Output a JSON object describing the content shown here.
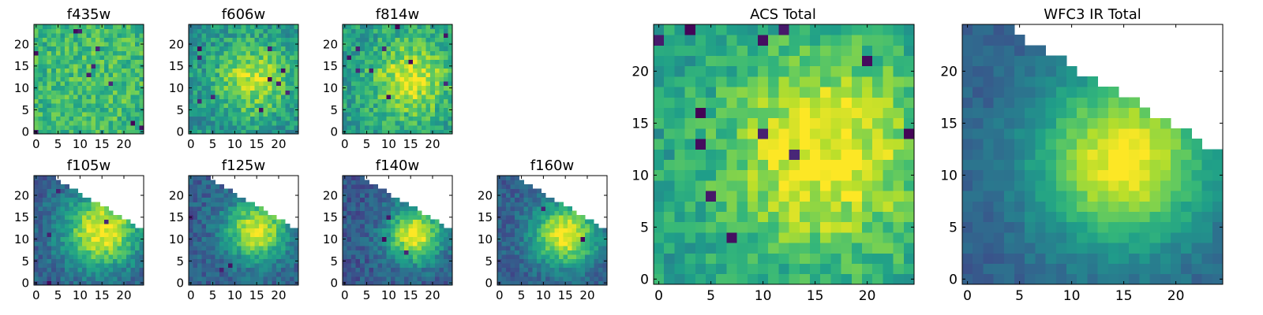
{
  "colormap": {
    "name": "viridis",
    "stops": [
      "#440154",
      "#482878",
      "#3e4989",
      "#31688e",
      "#26828e",
      "#1f9e89",
      "#35b779",
      "#6ece58",
      "#b5de2b",
      "#fde725"
    ]
  },
  "chart_data": [
    {
      "type": "heatmap",
      "title": "f435w",
      "x_ticks": [
        0,
        5,
        10,
        15,
        20
      ],
      "y_ticks": [
        0,
        5,
        10,
        15,
        20
      ],
      "xlim": [
        -0.5,
        24.5
      ],
      "ylim": [
        -0.5,
        24.5
      ],
      "grid_size": [
        25,
        25
      ],
      "value_range": [
        0,
        1
      ],
      "field": {
        "peak": [
          14,
          12
        ],
        "peak_value": 0.7,
        "width": 14,
        "background": 0.6,
        "noise": 0.3,
        "masked": "none",
        "hot_pixels": 10
      }
    },
    {
      "type": "heatmap",
      "title": "f606w",
      "x_ticks": [
        0,
        5,
        10,
        15,
        20
      ],
      "y_ticks": [
        0,
        5,
        10,
        15,
        20
      ],
      "xlim": [
        -0.5,
        24.5
      ],
      "ylim": [
        -0.5,
        24.5
      ],
      "grid_size": [
        25,
        25
      ],
      "value_range": [
        0,
        1
      ],
      "field": {
        "peak": [
          14,
          12
        ],
        "peak_value": 0.9,
        "width": 6,
        "background": 0.5,
        "noise": 0.3,
        "masked": "none",
        "hot_pixels": 10
      }
    },
    {
      "type": "heatmap",
      "title": "f814w",
      "x_ticks": [
        0,
        5,
        10,
        15,
        20
      ],
      "y_ticks": [
        0,
        5,
        10,
        15,
        20
      ],
      "xlim": [
        -0.5,
        24.5
      ],
      "ylim": [
        -0.5,
        24.5
      ],
      "grid_size": [
        25,
        25
      ],
      "value_range": [
        0,
        1
      ],
      "field": {
        "peak": [
          15,
          12
        ],
        "peak_value": 0.95,
        "width": 6,
        "background": 0.55,
        "noise": 0.3,
        "masked": "none",
        "hot_pixels": 10
      }
    },
    {
      "type": "heatmap",
      "title": "f105w",
      "x_ticks": [
        0,
        5,
        10,
        15,
        20
      ],
      "y_ticks": [
        0,
        5,
        10,
        15,
        20
      ],
      "xlim": [
        -0.5,
        24.5
      ],
      "ylim": [
        -0.5,
        24.5
      ],
      "grid_size": [
        25,
        25
      ],
      "value_range": [
        0,
        1
      ],
      "field": {
        "peak": [
          15,
          12
        ],
        "peak_value": 1.0,
        "width": 6,
        "background": 0.3,
        "noise": 0.22,
        "masked": "upper-right",
        "hot_pixels": 4
      }
    },
    {
      "type": "heatmap",
      "title": "f125w",
      "x_ticks": [
        0,
        5,
        10,
        15,
        20
      ],
      "y_ticks": [
        0,
        5,
        10,
        15,
        20
      ],
      "xlim": [
        -0.5,
        24.5
      ],
      "ylim": [
        -0.5,
        24.5
      ],
      "grid_size": [
        25,
        25
      ],
      "value_range": [
        0,
        1
      ],
      "field": {
        "peak": [
          15,
          12
        ],
        "peak_value": 0.95,
        "width": 5,
        "background": 0.3,
        "noise": 0.22,
        "masked": "upper-right",
        "hot_pixels": 4
      }
    },
    {
      "type": "heatmap",
      "title": "f140w",
      "x_ticks": [
        0,
        5,
        10,
        15,
        20
      ],
      "y_ticks": [
        0,
        5,
        10,
        15,
        20
      ],
      "xlim": [
        -0.5,
        24.5
      ],
      "ylim": [
        -0.5,
        24.5
      ],
      "grid_size": [
        25,
        25
      ],
      "value_range": [
        0,
        1
      ],
      "field": {
        "peak": [
          16,
          11
        ],
        "peak_value": 1.0,
        "width": 4.5,
        "background": 0.28,
        "noise": 0.22,
        "masked": "upper-right",
        "hot_pixels": 4
      }
    },
    {
      "type": "heatmap",
      "title": "f160w",
      "x_ticks": [
        0,
        5,
        10,
        15,
        20
      ],
      "y_ticks": [
        0,
        5,
        10,
        15,
        20
      ],
      "xlim": [
        -0.5,
        24.5
      ],
      "ylim": [
        -0.5,
        24.5
      ],
      "grid_size": [
        25,
        25
      ],
      "value_range": [
        0,
        1
      ],
      "field": {
        "peak": [
          15,
          11
        ],
        "peak_value": 1.0,
        "width": 5,
        "background": 0.3,
        "noise": 0.2,
        "masked": "upper-right",
        "hot_pixels": 2
      }
    },
    {
      "type": "heatmap",
      "title": "ACS Total",
      "x_ticks": [
        0,
        5,
        10,
        15,
        20
      ],
      "y_ticks": [
        0,
        5,
        10,
        15,
        20
      ],
      "xlim": [
        -0.5,
        24.5
      ],
      "ylim": [
        -0.5,
        24.5
      ],
      "grid_size": [
        25,
        25
      ],
      "value_range": [
        0,
        1
      ],
      "field": {
        "peak": [
          16,
          12
        ],
        "peak_value": 1.0,
        "width": 7,
        "background": 0.55,
        "noise": 0.25,
        "masked": "none",
        "hot_pixels": 12
      }
    },
    {
      "type": "heatmap",
      "title": "WFC3 IR Total",
      "x_ticks": [
        0,
        5,
        10,
        15,
        20
      ],
      "y_ticks": [
        0,
        5,
        10,
        15,
        20
      ],
      "xlim": [
        -0.5,
        24.5
      ],
      "ylim": [
        -0.5,
        24.5
      ],
      "grid_size": [
        25,
        25
      ],
      "value_range": [
        0,
        1
      ],
      "field": {
        "peak": [
          15,
          11.5
        ],
        "peak_value": 1.0,
        "width": 6,
        "background": 0.3,
        "noise": 0.12,
        "masked": "upper-right",
        "hot_pixels": 0
      }
    }
  ]
}
